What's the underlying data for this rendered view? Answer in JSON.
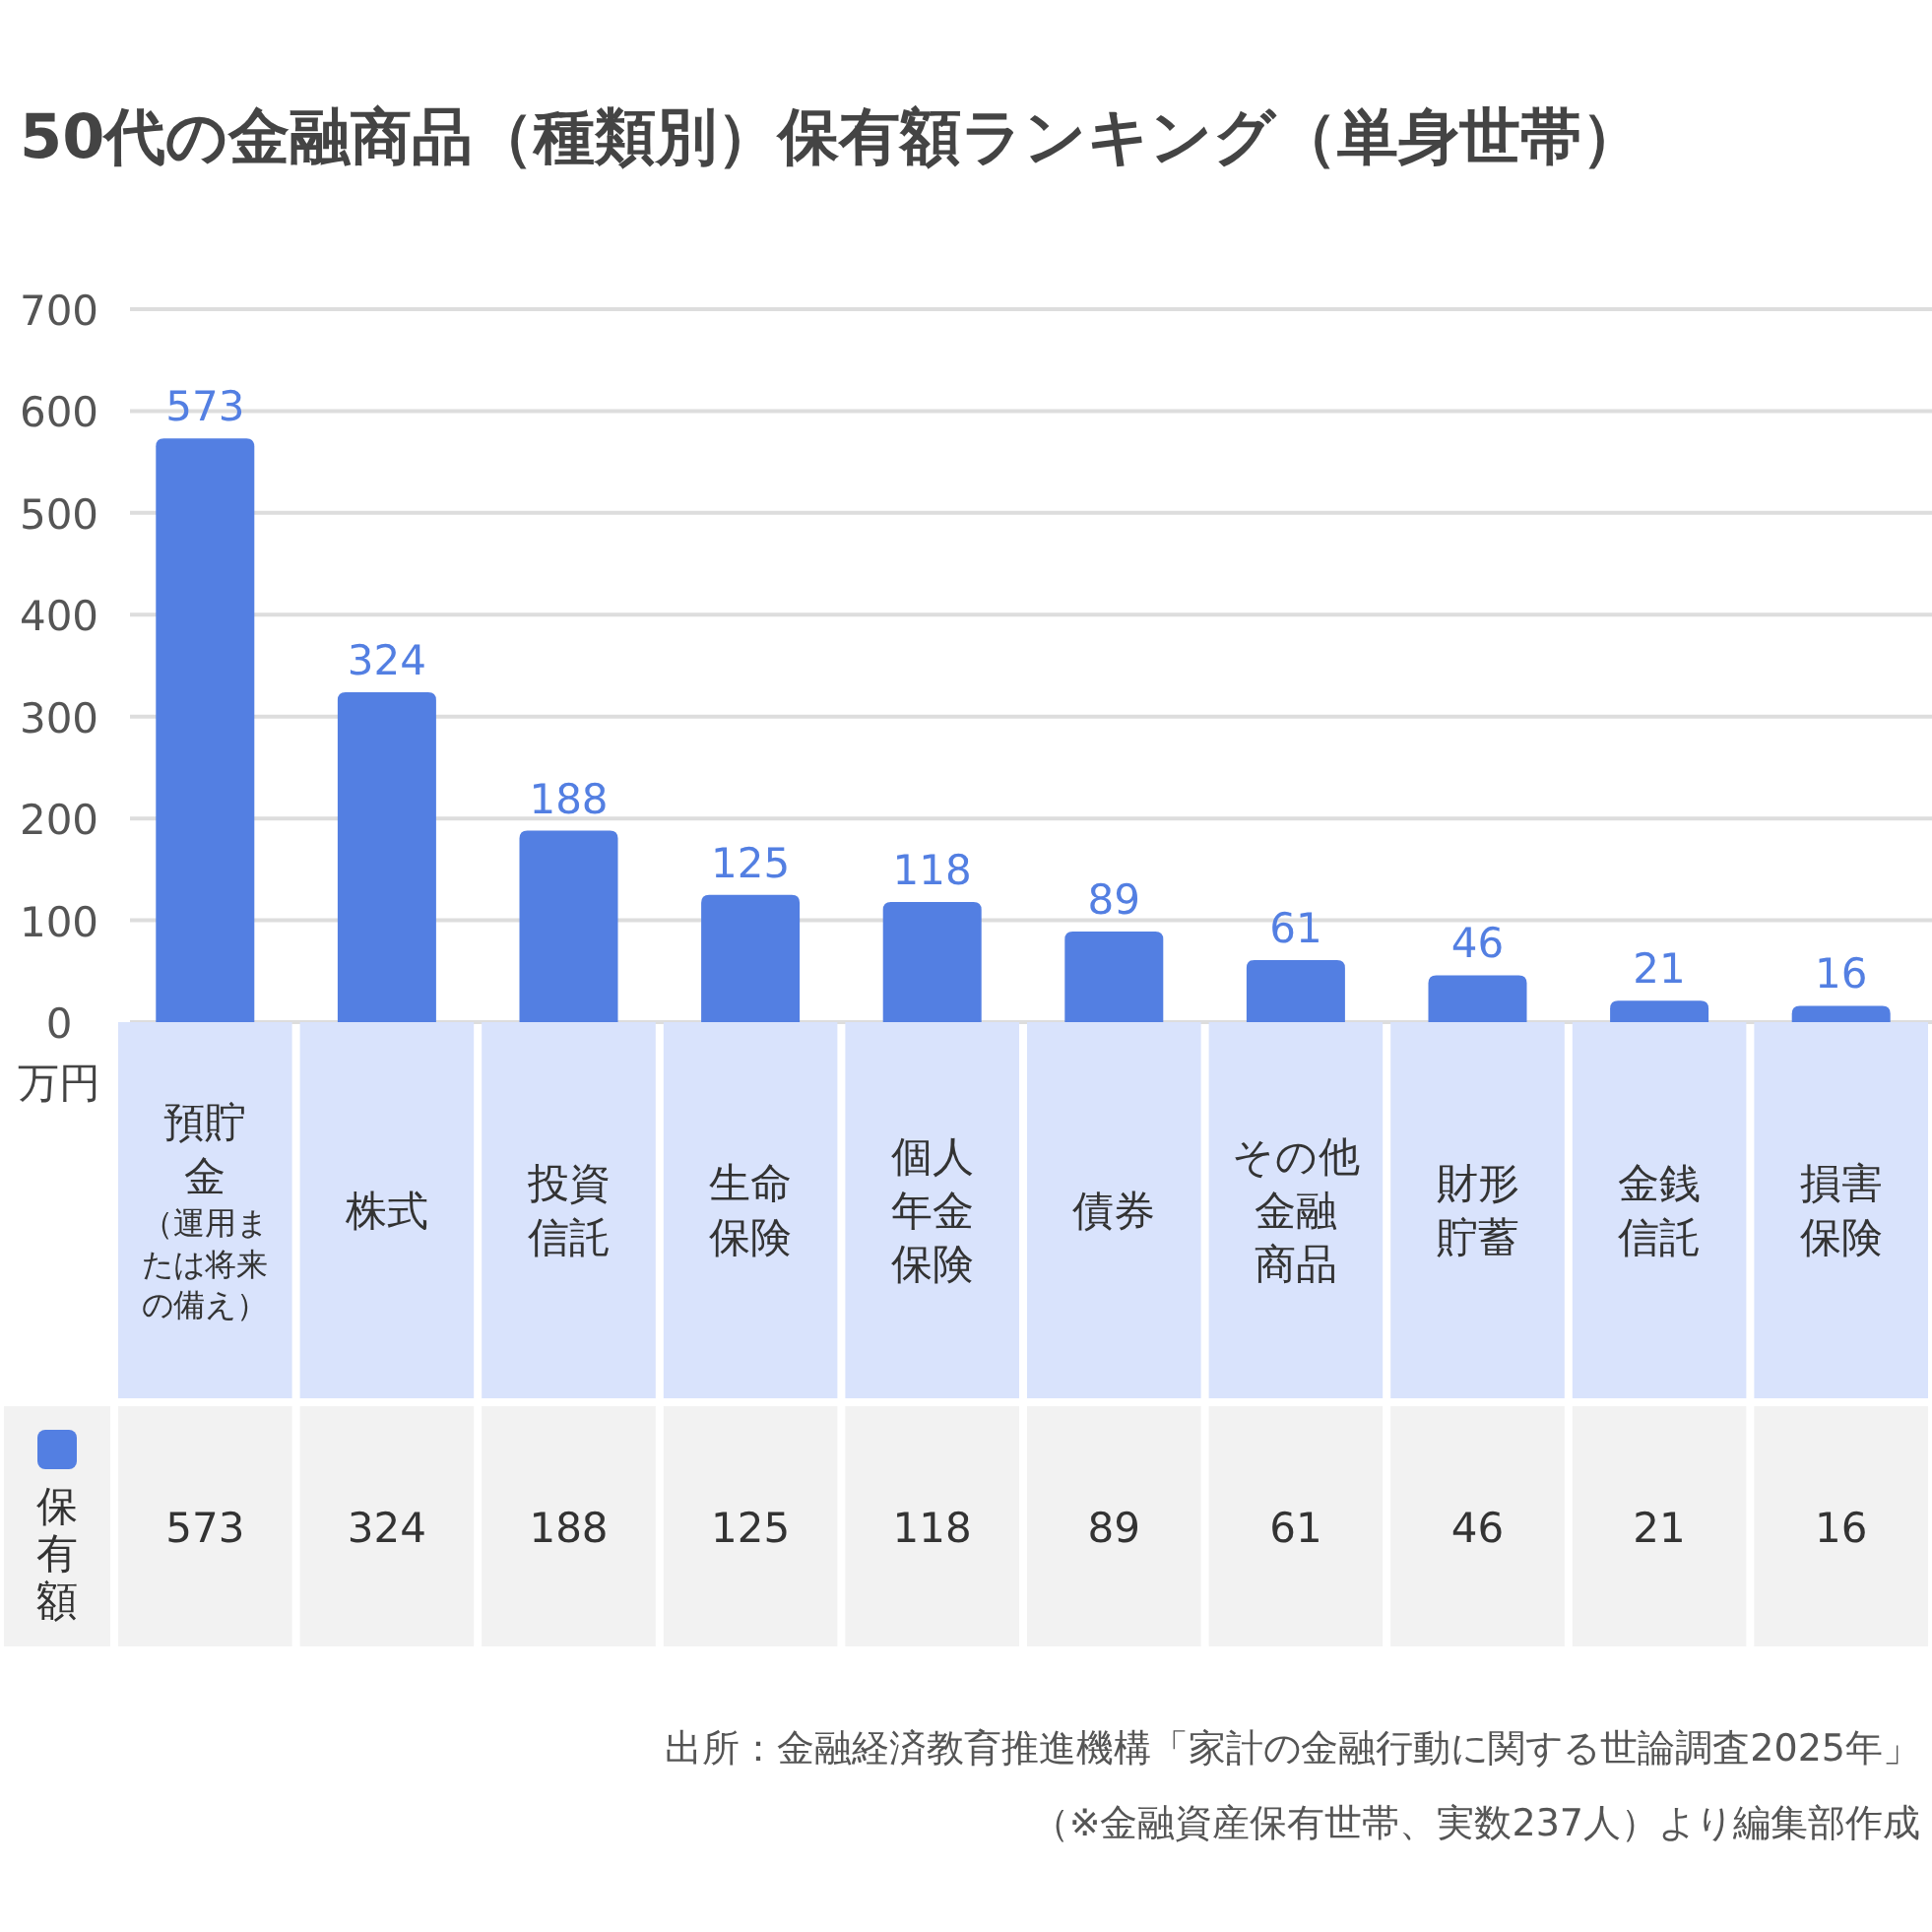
{
  "chart_data": {
    "type": "bar",
    "title": "50代の金融商品（種類別）保有額ランキング（単身世帯）",
    "ylabel": "万円",
    "categories": [
      "預貯金（運用または将来の備え）",
      "株式",
      "投資信託",
      "生命保険",
      "個人年金保険",
      "債券",
      "その他金融商品",
      "財形貯蓄",
      "金銭信託",
      "損害保険"
    ],
    "series": [
      {
        "name": "保有額",
        "color": "#537fe2",
        "values": [
          573,
          324,
          188,
          125,
          118,
          89,
          61,
          46,
          21,
          16
        ],
        "value_labels": [
          "573",
          "324",
          "188",
          "125",
          "118",
          "89",
          "61",
          "46",
          "21",
          "16"
        ]
      }
    ],
    "ylim": [
      0,
      700
    ],
    "yticks": [
      0,
      100,
      200,
      300,
      400,
      500,
      600,
      700
    ],
    "grid": "y",
    "data_labels": true,
    "legend": "bottom left",
    "annotations": [
      "出所：金融経済教育推進機構「家計の金融行動に関する世論調査2025年」",
      "（※金融資産保有世帯、実数237人）より編集部作成"
    ]
  }
}
